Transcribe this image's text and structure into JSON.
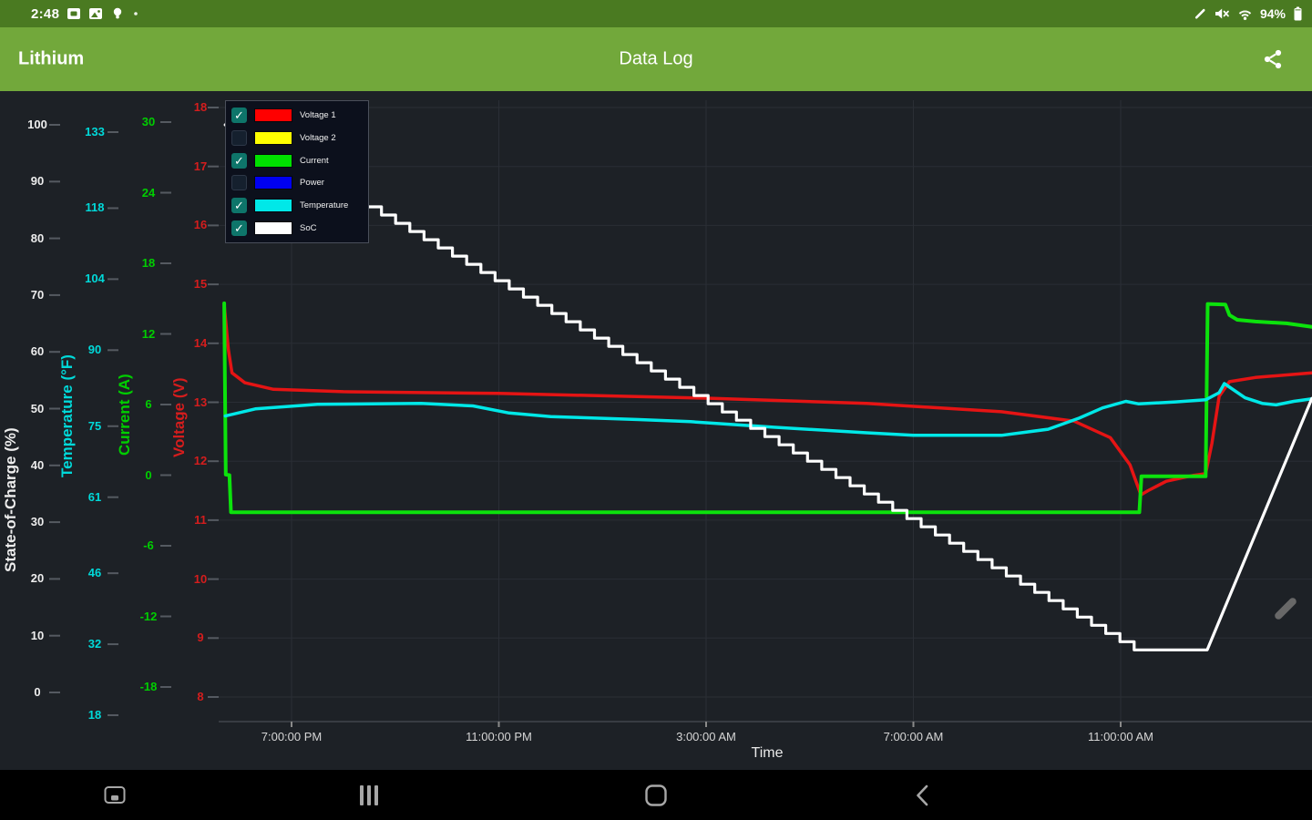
{
  "status_bar": {
    "time": "2:48",
    "battery_percent": "94%",
    "icons_left": [
      "screenshot-icon",
      "image-icon",
      "flashlight-icon",
      "notification-dot-icon"
    ],
    "icons_right": [
      "stylus-icon",
      "mute-icon",
      "wifi-icon",
      "battery-icon"
    ]
  },
  "app_bar": {
    "app_title": "Lithium",
    "screen_title": "Data Log",
    "accent_color": "#72a83b",
    "status_color": "#4a7a21"
  },
  "legend": {
    "items": [
      {
        "label": "Voltage 1",
        "color": "#ff0000",
        "checked": true
      },
      {
        "label": "Voltage 2",
        "color": "#ffff00",
        "checked": false
      },
      {
        "label": "Current",
        "color": "#00e100",
        "checked": true
      },
      {
        "label": "Power",
        "color": "#0000f0",
        "checked": false
      },
      {
        "label": "Temperature",
        "color": "#00e8e8",
        "checked": true
      },
      {
        "label": "SoC",
        "color": "#ffffff",
        "checked": true
      }
    ]
  },
  "chart_data": {
    "type": "line",
    "xlabel": "Time",
    "background": "#1d2126",
    "grid": true,
    "x_axis": {
      "tick_hours": [
        19,
        23,
        27,
        31,
        35
      ],
      "tick_labels": [
        "7:00:00 PM",
        "11:00:00 PM",
        "3:00:00 AM",
        "7:00:00 AM",
        "11:00:00 AM"
      ]
    },
    "axes": [
      {
        "id": "soc",
        "title": "State-of-Charge (%)",
        "color": "#ededed",
        "ticks": [
          100,
          90,
          80,
          70,
          60,
          50,
          40,
          30,
          20,
          10,
          0
        ]
      },
      {
        "id": "temp",
        "title": "Temperature (°F)",
        "color": "#00d9d9",
        "ticks": [
          133,
          118,
          104,
          90,
          75,
          61,
          46,
          32,
          18
        ]
      },
      {
        "id": "current",
        "title": "Current (A)",
        "color": "#00ce00",
        "ticks": [
          30,
          24,
          18,
          12,
          6,
          0,
          -6,
          -12,
          -18
        ]
      },
      {
        "id": "voltage",
        "title": "Voltage (V)",
        "color": "#d51d1d",
        "ticks": [
          18,
          17,
          16,
          15,
          14,
          13,
          12,
          11,
          10,
          9,
          8
        ]
      }
    ],
    "series": [
      {
        "name": "Voltage 1",
        "axis": "voltage",
        "color": "#e51414",
        "width": 3.5,
        "points": [
          [
            17.7,
            14.65
          ],
          [
            17.78,
            13.9
          ],
          [
            17.85,
            13.5
          ],
          [
            18.1,
            13.33
          ],
          [
            18.65,
            13.22
          ],
          [
            20.0,
            13.18
          ],
          [
            23.0,
            13.15
          ],
          [
            27.0,
            13.07
          ],
          [
            30.1,
            12.98
          ],
          [
            32.7,
            12.84
          ],
          [
            34.1,
            12.68
          ],
          [
            34.8,
            12.4
          ],
          [
            35.18,
            11.94
          ],
          [
            35.39,
            11.43
          ],
          [
            35.53,
            11.5
          ],
          [
            35.88,
            11.66
          ],
          [
            36.41,
            11.76
          ],
          [
            36.64,
            11.79
          ],
          [
            36.76,
            12.3
          ],
          [
            36.9,
            13.1
          ],
          [
            37.1,
            13.35
          ],
          [
            37.6,
            13.42
          ],
          [
            38.69,
            13.5
          ]
        ]
      },
      {
        "name": "Current",
        "axis": "current",
        "color": "#0ce20c",
        "width": 4,
        "points": [
          [
            17.7,
            14.6
          ],
          [
            17.73,
            0.05
          ],
          [
            17.8,
            0.0
          ],
          [
            17.83,
            -3.15
          ],
          [
            35.36,
            -3.15
          ],
          [
            35.4,
            -0.1
          ],
          [
            36.64,
            -0.1
          ],
          [
            36.68,
            14.55
          ],
          [
            37.02,
            14.5
          ],
          [
            37.1,
            13.6
          ],
          [
            37.25,
            13.2
          ],
          [
            37.6,
            13.05
          ],
          [
            38.2,
            12.9
          ],
          [
            38.69,
            12.6
          ]
        ]
      },
      {
        "name": "Temperature",
        "axis": "temp",
        "color": "#00e8e8",
        "width": 3.5,
        "points": [
          [
            17.72,
            77.0
          ],
          [
            18.3,
            78.4
          ],
          [
            19.5,
            79.3
          ],
          [
            21.5,
            79.5
          ],
          [
            22.5,
            79.0
          ],
          [
            23.2,
            77.6
          ],
          [
            24.0,
            76.9
          ],
          [
            25.7,
            76.3
          ],
          [
            26.7,
            75.9
          ],
          [
            28.3,
            74.8
          ],
          [
            30.1,
            73.7
          ],
          [
            31.0,
            73.2
          ],
          [
            32.7,
            73.2
          ],
          [
            33.6,
            74.4
          ],
          [
            34.2,
            76.6
          ],
          [
            34.65,
            78.6
          ],
          [
            35.1,
            79.9
          ],
          [
            35.35,
            79.4
          ],
          [
            36.06,
            79.8
          ],
          [
            36.64,
            80.2
          ],
          [
            36.9,
            81.6
          ],
          [
            37.0,
            83.4
          ],
          [
            37.4,
            80.6
          ],
          [
            37.73,
            79.5
          ],
          [
            38.0,
            79.2
          ],
          [
            38.34,
            79.9
          ],
          [
            38.69,
            80.4
          ]
        ]
      },
      {
        "name": "SoC",
        "axis": "soc",
        "color": "#ffffff",
        "width": 3.2,
        "stepped": true,
        "points": [
          [
            17.72,
            100
          ],
          [
            35.26,
            7.5
          ],
          [
            36.67,
            7.5
          ],
          [
            38.69,
            51.8
          ]
        ]
      }
    ]
  },
  "nav_bar": {
    "buttons": [
      "capture",
      "recents",
      "home",
      "back"
    ]
  }
}
